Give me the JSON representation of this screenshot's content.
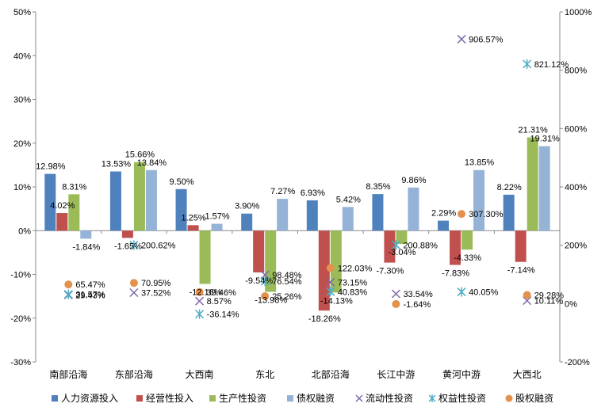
{
  "chart_data": {
    "type": "bar",
    "categories": [
      "南部沿海",
      "东部沿海",
      "大西南",
      "东北",
      "北部沿海",
      "长江中游",
      "黄河中游",
      "大西北"
    ],
    "ylim": [
      -30,
      50
    ],
    "y2lim": [
      -200,
      1000
    ],
    "left_ticks": [
      "50%",
      "40%",
      "30%",
      "20%",
      "10%",
      "0%",
      "-10%",
      "-20%",
      "-30%"
    ],
    "right_ticks": [
      "1000%",
      "800%",
      "600%",
      "400%",
      "200%",
      "0%",
      "-200%"
    ],
    "legend_placement": "bottom",
    "bar_series": [
      {
        "name": "人力资源投入",
        "color": "#4f81bd",
        "values": [
          12.98,
          13.53,
          9.5,
          3.9,
          6.93,
          8.35,
          2.29,
          8.22
        ],
        "labels": [
          "12.98%",
          "13.53%",
          "9.50%",
          "3.90%",
          "6.93%",
          "8.35%",
          "2.29%",
          "8.22%"
        ]
      },
      {
        "name": "经营性投入",
        "color": "#c0504d",
        "values": [
          4.02,
          -1.65,
          1.25,
          -9.54,
          -18.26,
          -7.3,
          -7.83,
          -7.14
        ],
        "labels": [
          "4.02%",
          "-1.65%",
          "1.25%",
          "-9.54%",
          "-18.26%",
          "-7.30%",
          "-7.83%",
          "-7.14%"
        ]
      },
      {
        "name": "生产性投资",
        "color": "#9bbb59",
        "values": [
          8.31,
          15.66,
          -12.16,
          -13.98,
          -14.13,
          -3.04,
          -4.33,
          21.31
        ],
        "labels": [
          "8.31%",
          "15.66%",
          "-12.16%",
          "-13.98%",
          "-14.13%",
          "-3.04%",
          "-4.33%",
          "21.31%"
        ]
      },
      {
        "name": "债权融资",
        "color": "#95b3d7",
        "values": [
          -1.84,
          13.84,
          1.57,
          7.27,
          5.42,
          9.86,
          13.85,
          19.31
        ],
        "labels": [
          "-1.84%",
          "13.84%",
          "1.57%",
          "7.27%",
          "5.42%",
          "9.86%",
          "13.85%",
          "19.31%"
        ]
      }
    ],
    "scatter_series": [
      {
        "name": "流动性投资",
        "color": "#7f6aa8",
        "marker": "x",
        "values": [
          29.43,
          37.52,
          8.57,
          98.48,
          73.15,
          33.54,
          906.57,
          10.11
        ],
        "labels": [
          "29.43%",
          "37.52%",
          "8.57%",
          "98.48%",
          "73.15%",
          "33.54%",
          "906.57%",
          "10.11%"
        ]
      },
      {
        "name": "权益性投资",
        "color": "#4bacc6",
        "marker": "star",
        "values": [
          31.57,
          200.62,
          -36.14,
          76.54,
          40.83,
          200.88,
          40.05,
          821.12
        ],
        "labels": [
          "31.57%",
          "200.62%",
          "-36.14%",
          "76.54%",
          "40.83%",
          "200.88%",
          "40.05%",
          "821.12%"
        ]
      },
      {
        "name": "股权融资",
        "color": "#e4914d",
        "marker": "circle",
        "values": [
          65.47,
          70.95,
          39.46,
          25.26,
          122.03,
          -1.64,
          307.3,
          29.28
        ],
        "labels": [
          "65.47%",
          "70.95%",
          "39.46%",
          "25.26%",
          "122.03%",
          "-1.64%",
          "307.30%",
          "29.28%"
        ]
      }
    ]
  }
}
